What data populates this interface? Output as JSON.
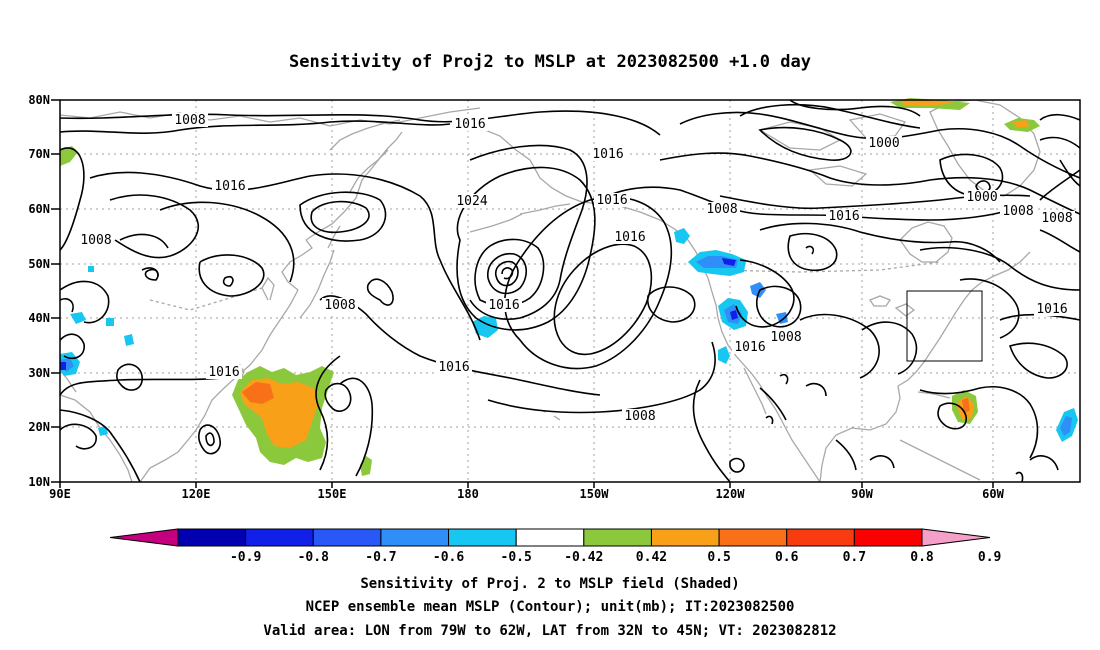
{
  "title": "Sensitivity of Proj2 to MSLP at 2023082500 +1.0 day",
  "lat_labels": [
    "80N",
    "70N",
    "60N",
    "50N",
    "40N",
    "30N",
    "20N",
    "10N"
  ],
  "lon_labels": [
    "90E",
    "120E",
    "150E",
    "180",
    "150W",
    "120W",
    "90W",
    "60W"
  ],
  "contour_labels": [
    "1008",
    "1016",
    "1016",
    "1008",
    "1000",
    "1016",
    "1008",
    "1000",
    "1008",
    "1016",
    "1008",
    "1016",
    "1016",
    "1024",
    "1008",
    "1016",
    "1016",
    "1016",
    "1008",
    "1016",
    "1008",
    "1016"
  ],
  "colorbar": {
    "labels": [
      "-0.9",
      "-0.8",
      "-0.7",
      "-0.6",
      "-0.5",
      "-0.42",
      "0.42",
      "0.5",
      "0.6",
      "0.7",
      "0.8",
      "0.9"
    ],
    "colors": [
      "#c4007f",
      "#0000b0",
      "#1020e8",
      "#2858f8",
      "#2f8ef8",
      "#18c6f2",
      "#ffffff",
      "#8cc83c",
      "#f8a018",
      "#f87018",
      "#f83c10",
      "#fa0000",
      "#f4a0c8"
    ]
  },
  "captions": [
    "Sensitivity of Proj. 2 to MSLP field (Shaded)",
    "NCEP ensemble mean MSLP (Contour); unit(mb); IT:2023082500",
    "Valid area: LON from 79W to 62W, LAT from 32N to 45N; VT: 2023082812"
  ]
}
